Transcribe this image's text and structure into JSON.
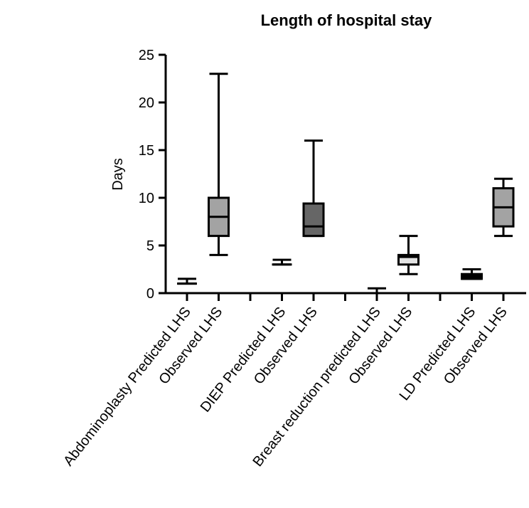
{
  "chart_data": {
    "type": "box",
    "title": "Length of hospital stay",
    "xlabel": "",
    "ylabel": "Days",
    "ylim": [
      0,
      25
    ],
    "yticks": [
      0,
      5,
      10,
      15,
      20,
      25
    ],
    "grid": false,
    "legend": "none",
    "series": [
      {
        "name": "Abdominoplasty Predicted LHS",
        "group": 0,
        "min": 1,
        "q1": 1,
        "median": 1,
        "q3": 1,
        "max": 1.5,
        "color": "#ffffff"
      },
      {
        "name": "Observed LHS",
        "group": 0,
        "min": 4,
        "q1": 6,
        "median": 8,
        "q3": 10,
        "max": 23,
        "color": "#a3a3a3"
      },
      {
        "name": "DIEP Predicted LHS",
        "group": 1,
        "min": 3,
        "q1": 3,
        "median": 3,
        "q3": 3,
        "max": 3.5,
        "color": "#ffffff"
      },
      {
        "name": "Observed LHS",
        "group": 1,
        "min": 6,
        "q1": 6,
        "median": 7,
        "q3": 9.4,
        "max": 16,
        "color": "#666666"
      },
      {
        "name": "Breast reduction predicted LHS",
        "group": 2,
        "min": 0,
        "q1": 0,
        "median": 0,
        "q3": 0,
        "max": 0.5,
        "color": "#ffffff"
      },
      {
        "name": "Observed LHS",
        "group": 2,
        "min": 2,
        "q1": 3,
        "median": 3.8,
        "q3": 4,
        "max": 6,
        "color": "#e3e3e3"
      },
      {
        "name": "LD Predicted LHS",
        "group": 3,
        "min": 1.5,
        "q1": 1.5,
        "median": 1.5,
        "q3": 2,
        "max": 2.5,
        "color": "#000000"
      },
      {
        "name": "Observed LHS",
        "group": 3,
        "min": 6,
        "q1": 7,
        "median": 9,
        "q3": 11,
        "max": 12,
        "color": "#a3a3a3"
      }
    ]
  }
}
